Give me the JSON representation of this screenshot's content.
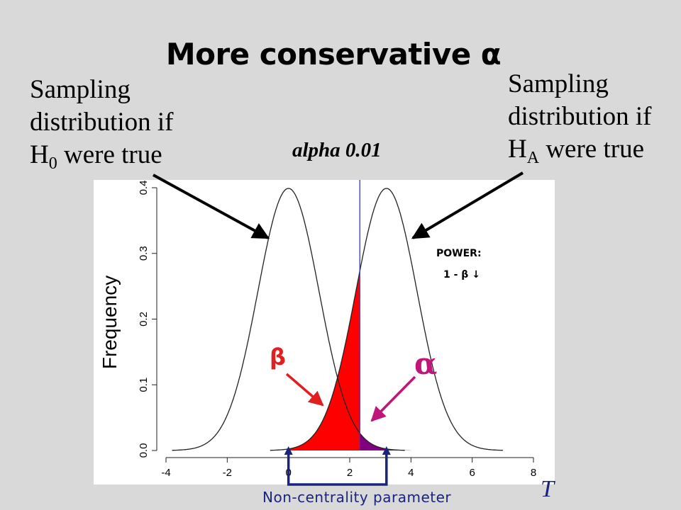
{
  "title": "More conservative α",
  "annotations": {
    "h0": {
      "line1": "Sampling",
      "line2": "distribution if",
      "sym": "H",
      "sub": "0",
      "tail": " were true"
    },
    "ha": {
      "line1": "Sampling",
      "line2": "distribution if",
      "sym": "H",
      "sub": "A",
      "tail": " were true"
    },
    "alpha_label": "alpha 0.01",
    "power_line1": "POWER:",
    "power_line2": "1 - β ↓",
    "beta_symbol": "β",
    "alpha_symbol": "α",
    "ncp_label": "Non-centrality parameter",
    "t_label": "T"
  },
  "colors": {
    "background": "#d9d9d9",
    "beta_fill": "#ff0000",
    "alpha_fill": "#800080",
    "critical_line": "#3333cc",
    "beta_arrow": "#e02020",
    "alpha_arrow": "#c0157a",
    "ncp_bracket": "#1a237e"
  },
  "chart_data": {
    "type": "line",
    "ylabel": "Frequency",
    "xlim": [
      -4,
      8
    ],
    "ylim": [
      0,
      0.4
    ],
    "x_ticks": [
      -4,
      -2,
      0,
      2,
      4,
      6,
      8
    ],
    "y_ticks": [
      0.0,
      0.1,
      0.2,
      0.3,
      0.4
    ],
    "x_tick_labels": [
      "-4",
      "-2",
      "0",
      "2",
      "4",
      "6",
      "8"
    ],
    "y_tick_labels": [
      "0.0",
      "0.1",
      "0.2",
      "0.3",
      "0.4"
    ],
    "series": [
      {
        "distribution": "normal",
        "mean": 0,
        "sd": 1
      },
      {
        "distribution": "normal",
        "mean": 3.2,
        "sd": 1
      }
    ],
    "critical_value": 2.33,
    "shaded": [
      {
        "region": "beta",
        "under": "H_A curve",
        "from": -4,
        "to": 2.33
      },
      {
        "region": "alpha",
        "under": "H_0 curve",
        "from": 2.33,
        "to": 8
      }
    ],
    "grid": false
  }
}
